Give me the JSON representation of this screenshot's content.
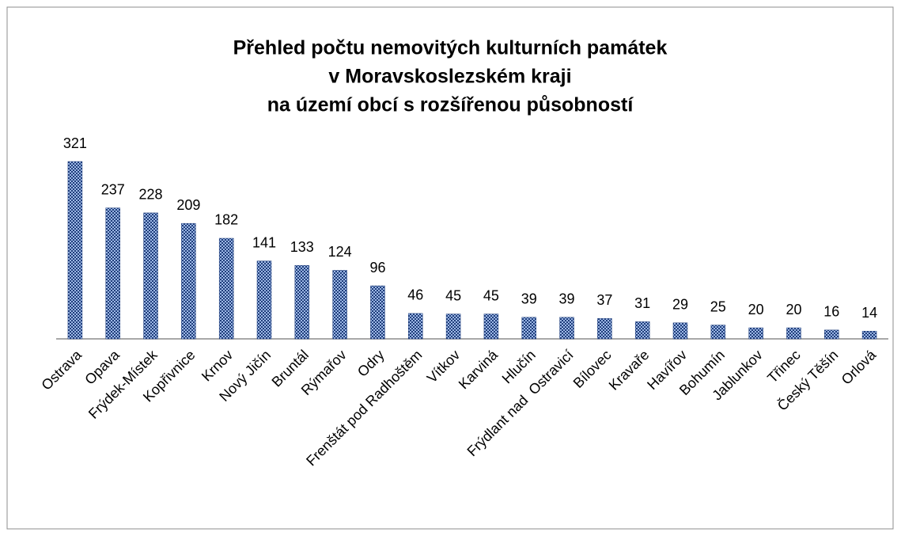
{
  "chart_data": {
    "type": "bar",
    "title": [
      "Přehled počtu nemovitých kulturních památek",
      "v Moravskoslezském kraji",
      "na území obcí s rozšířenou působností"
    ],
    "categories": [
      "Ostrava",
      "Opava",
      "Frýdek-Místek",
      "Kopřivnice",
      "Krnov",
      "Nový Jičín",
      "Bruntál",
      "Rýmařov",
      "Odry",
      "Frenštát pod Radhoštěm",
      "Vítkov",
      "Karviná",
      "Hlučín",
      "Frýdlant nad  Ostravicí",
      "Bílovec",
      "Kravaře",
      "Havířov",
      "Bohumín",
      "Jablunkov",
      "Třinec",
      "Český Těšín",
      "Orlová"
    ],
    "values": [
      321,
      237,
      228,
      209,
      182,
      141,
      133,
      124,
      96,
      46,
      45,
      45,
      39,
      39,
      37,
      31,
      29,
      25,
      20,
      20,
      16,
      14
    ],
    "color": "#1f3d7a"
  }
}
